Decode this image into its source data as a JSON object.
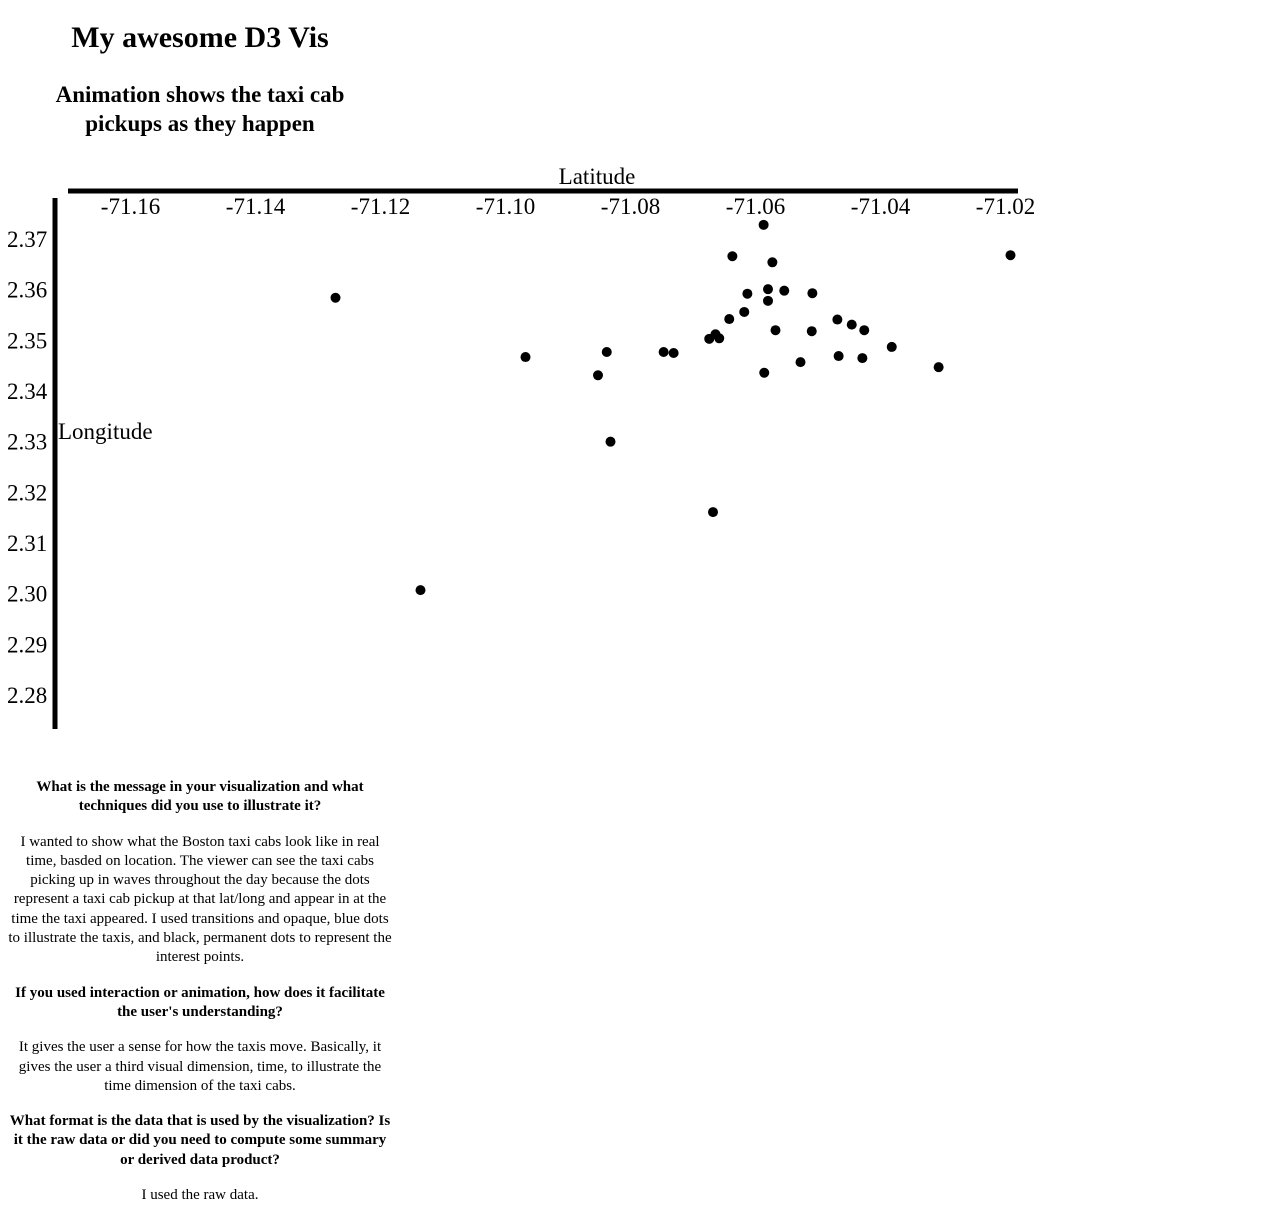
{
  "page": {
    "title": "My awesome D3 Vis",
    "subtitle_line1": "Animation shows the taxi cab",
    "subtitle_line2": "pickups as they happen"
  },
  "chart_data": {
    "type": "scatter",
    "xlabel": "Latitude",
    "ylabel": "Longitude",
    "x_axis_position": "top",
    "xlim": [
      -71.17,
      -71.018
    ],
    "ylim": [
      2.273,
      2.377
    ],
    "x_ticks": [
      -71.16,
      -71.14,
      -71.12,
      -71.1,
      -71.08,
      -71.06,
      -71.04,
      -71.02
    ],
    "y_ticks": [
      2.37,
      2.36,
      2.35,
      2.34,
      2.33,
      2.32,
      2.31,
      2.3,
      2.29,
      2.28
    ],
    "x_tick_labels": [
      "-71.16",
      "-71.14",
      "-71.12",
      "-71.10",
      "-71.08",
      "-71.06",
      "-71.04",
      "-71.02"
    ],
    "y_tick_labels": [
      "2.37",
      "2.36",
      "2.35",
      "2.34",
      "2.33",
      "2.32",
      "2.31",
      "2.30",
      "2.29",
      "2.28"
    ],
    "grid": false,
    "point_color": "#000000",
    "points": [
      {
        "x": -71.1272,
        "y": 2.3584
      },
      {
        "x": -71.1136,
        "y": 2.3007
      },
      {
        "x": -71.0968,
        "y": 2.3467
      },
      {
        "x": -71.0852,
        "y": 2.3431
      },
      {
        "x": -71.0838,
        "y": 2.3477
      },
      {
        "x": -71.0832,
        "y": 2.33
      },
      {
        "x": -71.0747,
        "y": 2.3477
      },
      {
        "x": -71.0731,
        "y": 2.3475
      },
      {
        "x": -71.0674,
        "y": 2.3503
      },
      {
        "x": -71.0668,
        "y": 2.3161
      },
      {
        "x": -71.0664,
        "y": 2.3512
      },
      {
        "x": -71.0658,
        "y": 2.3504
      },
      {
        "x": -71.0642,
        "y": 2.3542
      },
      {
        "x": -71.0637,
        "y": 2.3666
      },
      {
        "x": -71.0618,
        "y": 2.3556
      },
      {
        "x": -71.0613,
        "y": 2.3592
      },
      {
        "x": -71.0587,
        "y": 2.3728
      },
      {
        "x": -71.0586,
        "y": 2.3436
      },
      {
        "x": -71.058,
        "y": 2.3601
      },
      {
        "x": -71.058,
        "y": 2.3578
      },
      {
        "x": -71.0573,
        "y": 2.3654
      },
      {
        "x": -71.0568,
        "y": 2.352
      },
      {
        "x": -71.0554,
        "y": 2.3598
      },
      {
        "x": -71.0528,
        "y": 2.3457
      },
      {
        "x": -71.051,
        "y": 2.3518
      },
      {
        "x": -71.0509,
        "y": 2.3593
      },
      {
        "x": -71.0469,
        "y": 2.3541
      },
      {
        "x": -71.0467,
        "y": 2.3469
      },
      {
        "x": -71.0446,
        "y": 2.3531
      },
      {
        "x": -71.0429,
        "y": 2.3465
      },
      {
        "x": -71.0426,
        "y": 2.352
      },
      {
        "x": -71.0382,
        "y": 2.3487
      },
      {
        "x": -71.0307,
        "y": 2.3447
      },
      {
        "x": -71.0192,
        "y": 2.3668
      }
    ]
  },
  "writeup": {
    "q1": "What is the message in your visualization and what techniques did you use to illustrate it?",
    "a1": "I wanted to show what the Boston taxi cabs look like in real time, basded on location. The viewer can see the taxi cabs picking up in waves throughout the day because the dots represent a taxi cab pickup at that lat/long and appear in at the time the taxi appeared. I used transitions and opaque, blue dots to illustrate the taxis, and black, permanent dots to represent the interest points.",
    "q2": "If you used interaction or animation, how does it facilitate the user's understanding?",
    "a2": "It gives the user a sense for how the taxis move. Basically, it gives the user a third visual dimension, time, to illustrate the time dimension of the taxi cabs.",
    "q3": "What format is the data that is used by the visualization? Is it the raw data or did you need to compute some summary or derived data product?",
    "a3": "I used the raw data."
  }
}
